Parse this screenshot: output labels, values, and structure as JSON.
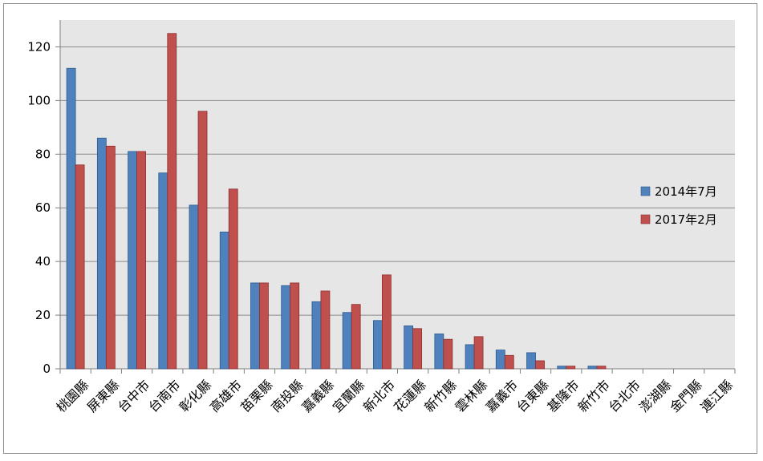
{
  "chart_data": {
    "type": "bar",
    "categories": [
      "桃園縣",
      "屏東縣",
      "台中市",
      "台南市",
      "彰化縣",
      "高雄市",
      "苗栗縣",
      "南投縣",
      "嘉義縣",
      "宜蘭縣",
      "新北市",
      "花蓮縣",
      "新竹縣",
      "雲林縣",
      "嘉義市",
      "台東縣",
      "基隆市",
      "新竹市",
      "台北市",
      "澎湖縣",
      "金門縣",
      "連江縣"
    ],
    "series": [
      {
        "name": "2014年7月",
        "color": "#4f81bd",
        "stroke": "#2c5a8f",
        "values": [
          112,
          86,
          81,
          73,
          61,
          51,
          32,
          31,
          25,
          21,
          18,
          16,
          13,
          9,
          7,
          6,
          1,
          1,
          0,
          0,
          0,
          0
        ]
      },
      {
        "name": "2017年2月",
        "color": "#c0504d",
        "stroke": "#8c2f2d",
        "values": [
          76,
          83,
          81,
          125,
          96,
          67,
          32,
          32,
          29,
          24,
          35,
          15,
          11,
          12,
          5,
          3,
          1,
          1,
          0,
          0,
          0,
          0
        ]
      }
    ],
    "y_ticks": [
      0,
      20,
      40,
      60,
      80,
      100,
      120
    ],
    "ylim": [
      0,
      130
    ],
    "grid": true,
    "plot_background": "#e6e6e6",
    "legend_position": "right",
    "title": "",
    "xlabel": "",
    "ylabel": ""
  }
}
